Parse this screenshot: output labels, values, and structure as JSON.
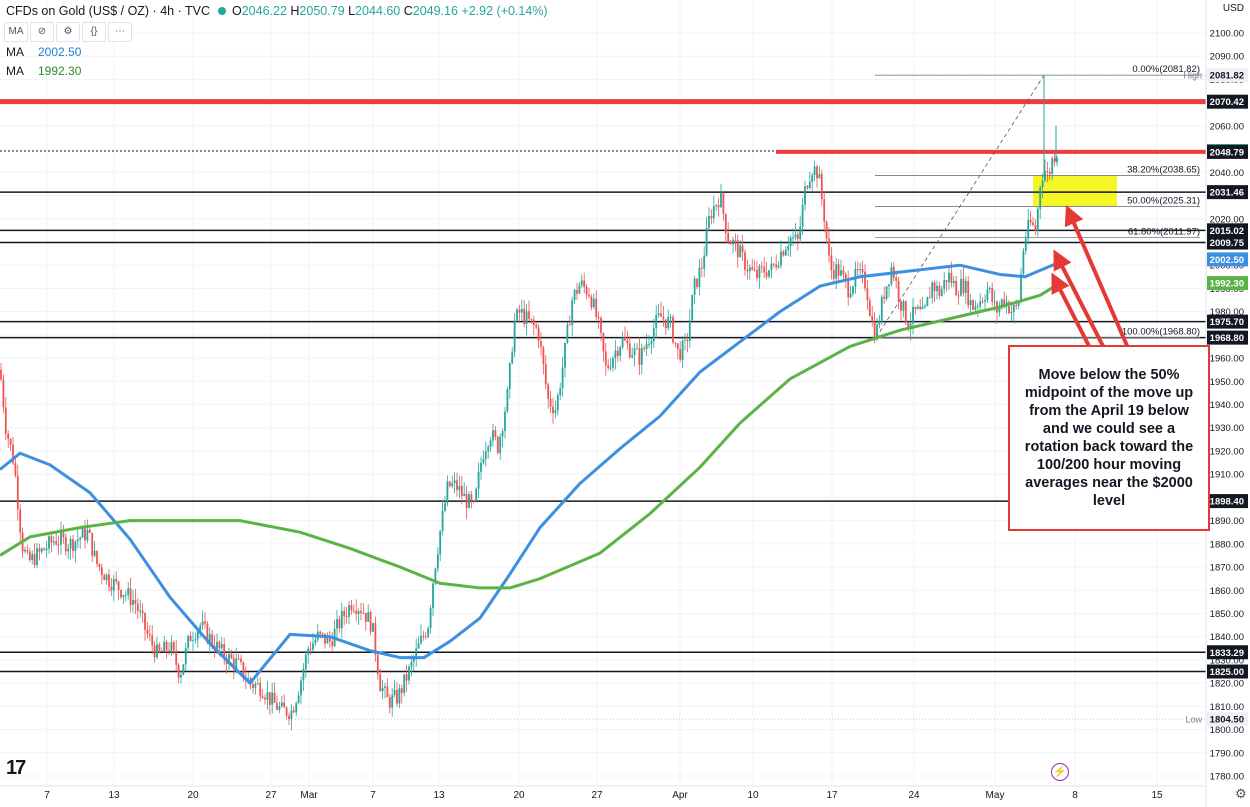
{
  "header": {
    "title": "CFDs on Gold (US$ / OZ) · 4h · TVC",
    "open_label": "O",
    "open": "2046.22",
    "high_label": "H",
    "high": "2050.79",
    "low_label": "L",
    "low": "2044.60",
    "close_label": "C",
    "close": "2049.16",
    "change": "+2.92 (+0.14%)"
  },
  "toolbar": {
    "ma_badge": "MA",
    "eye_icon": "eye-off",
    "settings_icon": "gear",
    "code_icon": "{}",
    "more_icon": "ooo"
  },
  "ma_rows": [
    {
      "label": "MA",
      "value": "2002.50"
    },
    {
      "label": "MA",
      "value": "1992.30"
    }
  ],
  "currency": "USD",
  "annotation": "Move below the 50% midpoint of the move up from the April 19 below and we could see a rotation back toward the 100/200 hour moving averages near the $2000 level",
  "colors": {
    "up": "#26a69a",
    "down": "#ef5350",
    "ma100": "#3d8fe0",
    "ma200": "#5bb346",
    "resistance": "#ef3b3b",
    "fib_zone": "#f4f400",
    "arrow": "#e53935"
  },
  "chart_data": {
    "type": "candlestick",
    "timeframe": "4h",
    "ylim": [
      1775,
      2110
    ],
    "y_ticks": [
      1780,
      1790,
      1800,
      1810,
      1820,
      1830,
      1840,
      1850,
      1860,
      1870,
      1880,
      1890,
      1900,
      1910,
      1920,
      1930,
      1940,
      1950,
      1960,
      1970,
      1980,
      1990,
      2000,
      2010,
      2020,
      2030,
      2040,
      2050,
      2060,
      2070,
      2080,
      2090,
      2100
    ],
    "x_ticks": [
      "7",
      "13",
      "20",
      "27",
      "Mar",
      "7",
      "13",
      "20",
      "27",
      "Apr",
      "10",
      "17",
      "24",
      "May",
      "8",
      "15"
    ],
    "close_path": [
      [
        0,
        1955
      ],
      [
        6,
        1930
      ],
      [
        14,
        1915
      ],
      [
        22,
        1880
      ],
      [
        28,
        1872
      ],
      [
        40,
        1876
      ],
      [
        55,
        1882
      ],
      [
        70,
        1880
      ],
      [
        88,
        1885
      ],
      [
        96,
        1872
      ],
      [
        108,
        1865
      ],
      [
        122,
        1860
      ],
      [
        135,
        1855
      ],
      [
        148,
        1840
      ],
      [
        158,
        1832
      ],
      [
        170,
        1836
      ],
      [
        180,
        1824
      ],
      [
        190,
        1840
      ],
      [
        200,
        1845
      ],
      [
        212,
        1838
      ],
      [
        224,
        1832
      ],
      [
        238,
        1828
      ],
      [
        250,
        1820
      ],
      [
        262,
        1818
      ],
      [
        272,
        1812
      ],
      [
        282,
        1808
      ],
      [
        292,
        1808
      ],
      [
        300,
        1820
      ],
      [
        308,
        1835
      ],
      [
        318,
        1840
      ],
      [
        330,
        1838
      ],
      [
        342,
        1848
      ],
      [
        352,
        1855
      ],
      [
        362,
        1852
      ],
      [
        372,
        1845
      ],
      [
        380,
        1820
      ],
      [
        388,
        1812
      ],
      [
        398,
        1814
      ],
      [
        410,
        1826
      ],
      [
        418,
        1835
      ],
      [
        428,
        1845
      ],
      [
        434,
        1868
      ],
      [
        440,
        1885
      ],
      [
        448,
        1905
      ],
      [
        456,
        1905
      ],
      [
        464,
        1900
      ],
      [
        474,
        1895
      ],
      [
        482,
        1918
      ],
      [
        490,
        1928
      ],
      [
        498,
        1922
      ],
      [
        508,
        1945
      ],
      [
        514,
        1975
      ],
      [
        520,
        1980
      ],
      [
        530,
        1975
      ],
      [
        538,
        1972
      ],
      [
        548,
        1942
      ],
      [
        556,
        1938
      ],
      [
        564,
        1960
      ],
      [
        572,
        1985
      ],
      [
        580,
        1992
      ],
      [
        590,
        1988
      ],
      [
        598,
        1975
      ],
      [
        606,
        1955
      ],
      [
        614,
        1962
      ],
      [
        622,
        1968
      ],
      [
        630,
        1964
      ],
      [
        640,
        1960
      ],
      [
        650,
        1970
      ],
      [
        660,
        1978
      ],
      [
        670,
        1975
      ],
      [
        678,
        1962
      ],
      [
        686,
        1965
      ],
      [
        694,
        1990
      ],
      [
        702,
        2000
      ],
      [
        710,
        2022
      ],
      [
        720,
        2030
      ],
      [
        728,
        2012
      ],
      [
        736,
        2008
      ],
      [
        746,
        2000
      ],
      [
        756,
        1995
      ],
      [
        764,
        1998
      ],
      [
        772,
        1998
      ],
      [
        780,
        2005
      ],
      [
        790,
        2012
      ],
      [
        798,
        2010
      ],
      [
        806,
        2035
      ],
      [
        812,
        2042
      ],
      [
        818,
        2040
      ],
      [
        824,
        2022
      ],
      [
        830,
        1998
      ],
      [
        838,
        1998
      ],
      [
        848,
        1990
      ],
      [
        858,
        1996
      ],
      [
        866,
        1992
      ],
      [
        872,
        1975
      ],
      [
        876,
        1970
      ],
      [
        884,
        1988
      ],
      [
        892,
        2000
      ],
      [
        900,
        1985
      ],
      [
        908,
        1975
      ],
      [
        916,
        1980
      ],
      [
        924,
        1978
      ],
      [
        932,
        1992
      ],
      [
        940,
        1988
      ],
      [
        948,
        1996
      ],
      [
        956,
        1990
      ],
      [
        964,
        1992
      ],
      [
        972,
        1982
      ],
      [
        980,
        1985
      ],
      [
        988,
        1990
      ],
      [
        996,
        1980
      ],
      [
        1004,
        1986
      ],
      [
        1012,
        1980
      ],
      [
        1018,
        1982
      ],
      [
        1024,
        2010
      ],
      [
        1030,
        2018
      ],
      [
        1036,
        2015
      ],
      [
        1040,
        2035
      ],
      [
        1044,
        2042
      ],
      [
        1048,
        2038
      ],
      [
        1052,
        2045
      ],
      [
        1056,
        2049
      ]
    ],
    "series": [
      {
        "name": "MA",
        "value": 2002.5,
        "points": [
          [
            0,
            1912
          ],
          [
            20,
            1919
          ],
          [
            50,
            1914
          ],
          [
            90,
            1902
          ],
          [
            130,
            1882
          ],
          [
            170,
            1857
          ],
          [
            210,
            1837
          ],
          [
            250,
            1820
          ],
          [
            290,
            1841
          ],
          [
            330,
            1840
          ],
          [
            370,
            1834
          ],
          [
            400,
            1831
          ],
          [
            424,
            1831
          ],
          [
            450,
            1838
          ],
          [
            480,
            1848
          ],
          [
            510,
            1867
          ],
          [
            540,
            1887
          ],
          [
            580,
            1906
          ],
          [
            620,
            1921
          ],
          [
            660,
            1935
          ],
          [
            700,
            1954
          ],
          [
            740,
            1967
          ],
          [
            780,
            1980
          ],
          [
            820,
            1991
          ],
          [
            860,
            1995
          ],
          [
            900,
            1997
          ],
          [
            960,
            2000
          ],
          [
            1000,
            1996
          ],
          [
            1025,
            1995
          ],
          [
            1058,
            2001
          ]
        ]
      },
      {
        "name": "MA",
        "value": 1992.3,
        "points": [
          [
            0,
            1875
          ],
          [
            30,
            1883
          ],
          [
            80,
            1887
          ],
          [
            130,
            1890
          ],
          [
            190,
            1890
          ],
          [
            240,
            1890
          ],
          [
            300,
            1885
          ],
          [
            350,
            1878
          ],
          [
            400,
            1870
          ],
          [
            440,
            1863
          ],
          [
            480,
            1861
          ],
          [
            510,
            1861
          ],
          [
            540,
            1865
          ],
          [
            600,
            1876
          ],
          [
            650,
            1893
          ],
          [
            700,
            1913
          ],
          [
            740,
            1932
          ],
          [
            790,
            1951
          ],
          [
            850,
            1965
          ],
          [
            900,
            1972
          ],
          [
            960,
            1978
          ],
          [
            1000,
            1982
          ],
          [
            1040,
            1987
          ],
          [
            1055,
            1991
          ]
        ]
      }
    ],
    "horizontal_levels": [
      {
        "value": 2070.42,
        "label": "2070.42",
        "color": "#ef3b3b",
        "width": 5
      },
      {
        "value": 2049.16,
        "label": "2049.16",
        "color": "#131722",
        "width": 1,
        "dotted": true,
        "badge": "#26a69a"
      },
      {
        "value": 2048.79,
        "label": "2048.79",
        "color": "#ef3b3b",
        "width": 4,
        "start": 776
      },
      {
        "value": 2031.46,
        "label": "2031.46",
        "color": "#131722",
        "width": 1.5
      },
      {
        "value": 2015.02,
        "label": "2015.02",
        "color": "#131722",
        "width": 1.5
      },
      {
        "value": 2009.75,
        "label": "2009.75",
        "color": "#131722",
        "width": 1.5
      },
      {
        "value": 1975.7,
        "label": "1975.70",
        "color": "#131722",
        "width": 1.5
      },
      {
        "value": 1968.8,
        "label": "1968.80",
        "color": "#131722",
        "width": 1.5
      },
      {
        "value": 1898.4,
        "label": "1898.40",
        "color": "#131722",
        "width": 1.5
      },
      {
        "value": 1833.29,
        "label": "1833.29",
        "color": "#131722",
        "width": 1.5
      },
      {
        "value": 1825.0,
        "label": "1825.00",
        "color": "#131722",
        "width": 1.5
      }
    ],
    "fibonacci": [
      {
        "label": "0.00%(2081.82)",
        "value": 2081.82
      },
      {
        "label": "38.20%(2038.65)",
        "value": 2038.65
      },
      {
        "label": "50.00%(2025.31)",
        "value": 2025.31
      },
      {
        "label": "61.80%(2011.97)",
        "value": 2011.97
      },
      {
        "label": "100.00%(1968.80)",
        "value": 1968.8
      }
    ],
    "high": {
      "tag": "High",
      "value": "2081.82"
    },
    "low": {
      "tag": "Low",
      "value": "1804.50"
    },
    "ma_badges": [
      {
        "label": "2002.50",
        "value": 2002.5,
        "color": "#3d8fe0"
      },
      {
        "label": "1992.30",
        "value": 1992.3,
        "color": "#5bb346"
      }
    ]
  }
}
